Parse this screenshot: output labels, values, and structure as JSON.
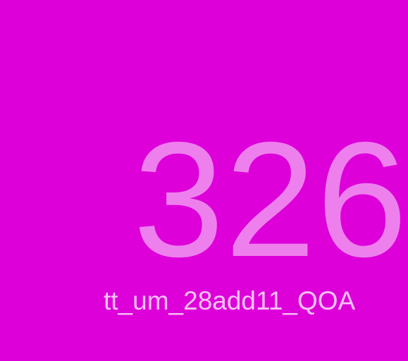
{
  "theme": {
    "background": "#dd00d9",
    "number_color": "#ee80ee",
    "label_color": "#f7c4f5"
  },
  "display": {
    "number": "326",
    "label": "tt_um_28add11_QOA"
  }
}
